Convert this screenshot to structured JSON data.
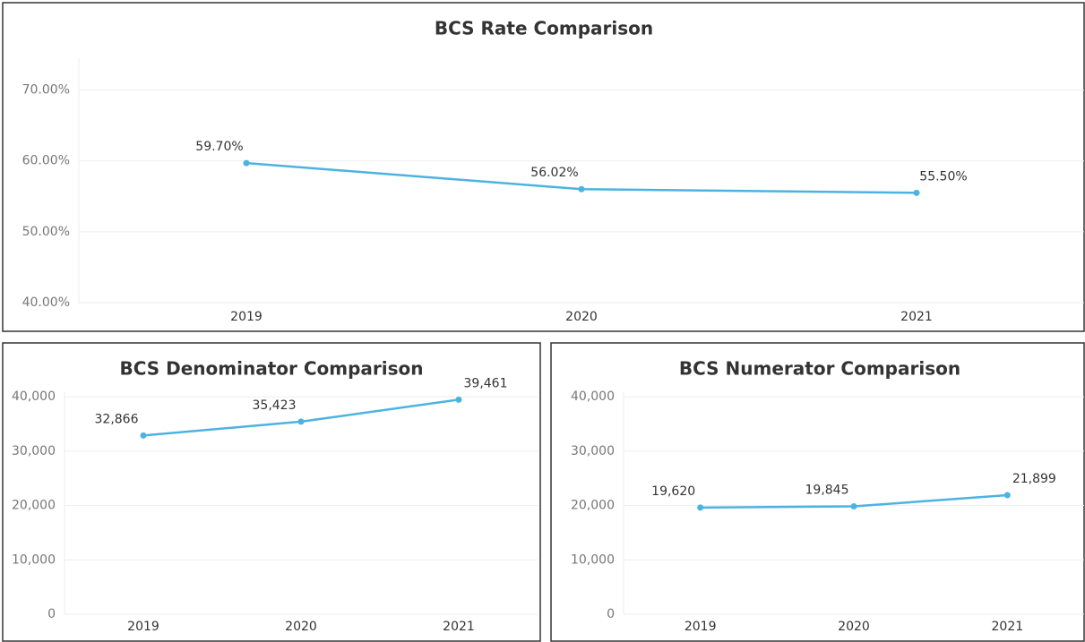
{
  "chart_data": [
    {
      "type": "line",
      "title": "BCS Rate Comparison",
      "categories": [
        "2019",
        "2020",
        "2021"
      ],
      "series": [
        {
          "name": "BCS Rate",
          "color": "#4cb3e0",
          "values": [
            59.7,
            56.02,
            55.5
          ],
          "value_labels": [
            "59.70%",
            "56.02%",
            "55.50%"
          ]
        }
      ],
      "ylim": [
        40,
        74.5
      ],
      "yticks": [
        {
          "value": 40,
          "label": "40.00%"
        },
        {
          "value": 50,
          "label": "50.00%"
        },
        {
          "value": 60,
          "label": "60.00%"
        },
        {
          "value": 70,
          "label": "70.00%"
        }
      ],
      "grid": true
    },
    {
      "type": "line",
      "title": "BCS Denominator Comparison",
      "categories": [
        "2019",
        "2020",
        "2021"
      ],
      "series": [
        {
          "name": "BCS Denominator",
          "color": "#4cb3e0",
          "values": [
            32866,
            35423,
            39461
          ],
          "value_labels": [
            "32,866",
            "35,423",
            "39,461"
          ]
        }
      ],
      "ylim": [
        0,
        41000
      ],
      "yticks": [
        0,
        {
          "value": 10000,
          "label": "10,000"
        },
        {
          "value": 20000,
          "label": "20,000"
        },
        {
          "value": 30000,
          "label": "30,000"
        },
        {
          "value": 40000,
          "label": "40,000"
        }
      ],
      "grid": true
    },
    {
      "type": "line",
      "title": "BCS Numerator Comparison",
      "categories": [
        "2019",
        "2020",
        "2021"
      ],
      "series": [
        {
          "name": "BCS Numerator",
          "color": "#4cb3e0",
          "values": [
            19620,
            19845,
            21899
          ],
          "value_labels": [
            "19,620",
            "19,845",
            "21,899"
          ]
        }
      ],
      "ylim": [
        0,
        41000
      ],
      "yticks": [
        0,
        {
          "value": 10000,
          "label": "10,000"
        },
        {
          "value": 20000,
          "label": "20,000"
        },
        {
          "value": 30000,
          "label": "30,000"
        },
        {
          "value": 40000,
          "label": "40,000"
        }
      ],
      "grid": true
    }
  ]
}
